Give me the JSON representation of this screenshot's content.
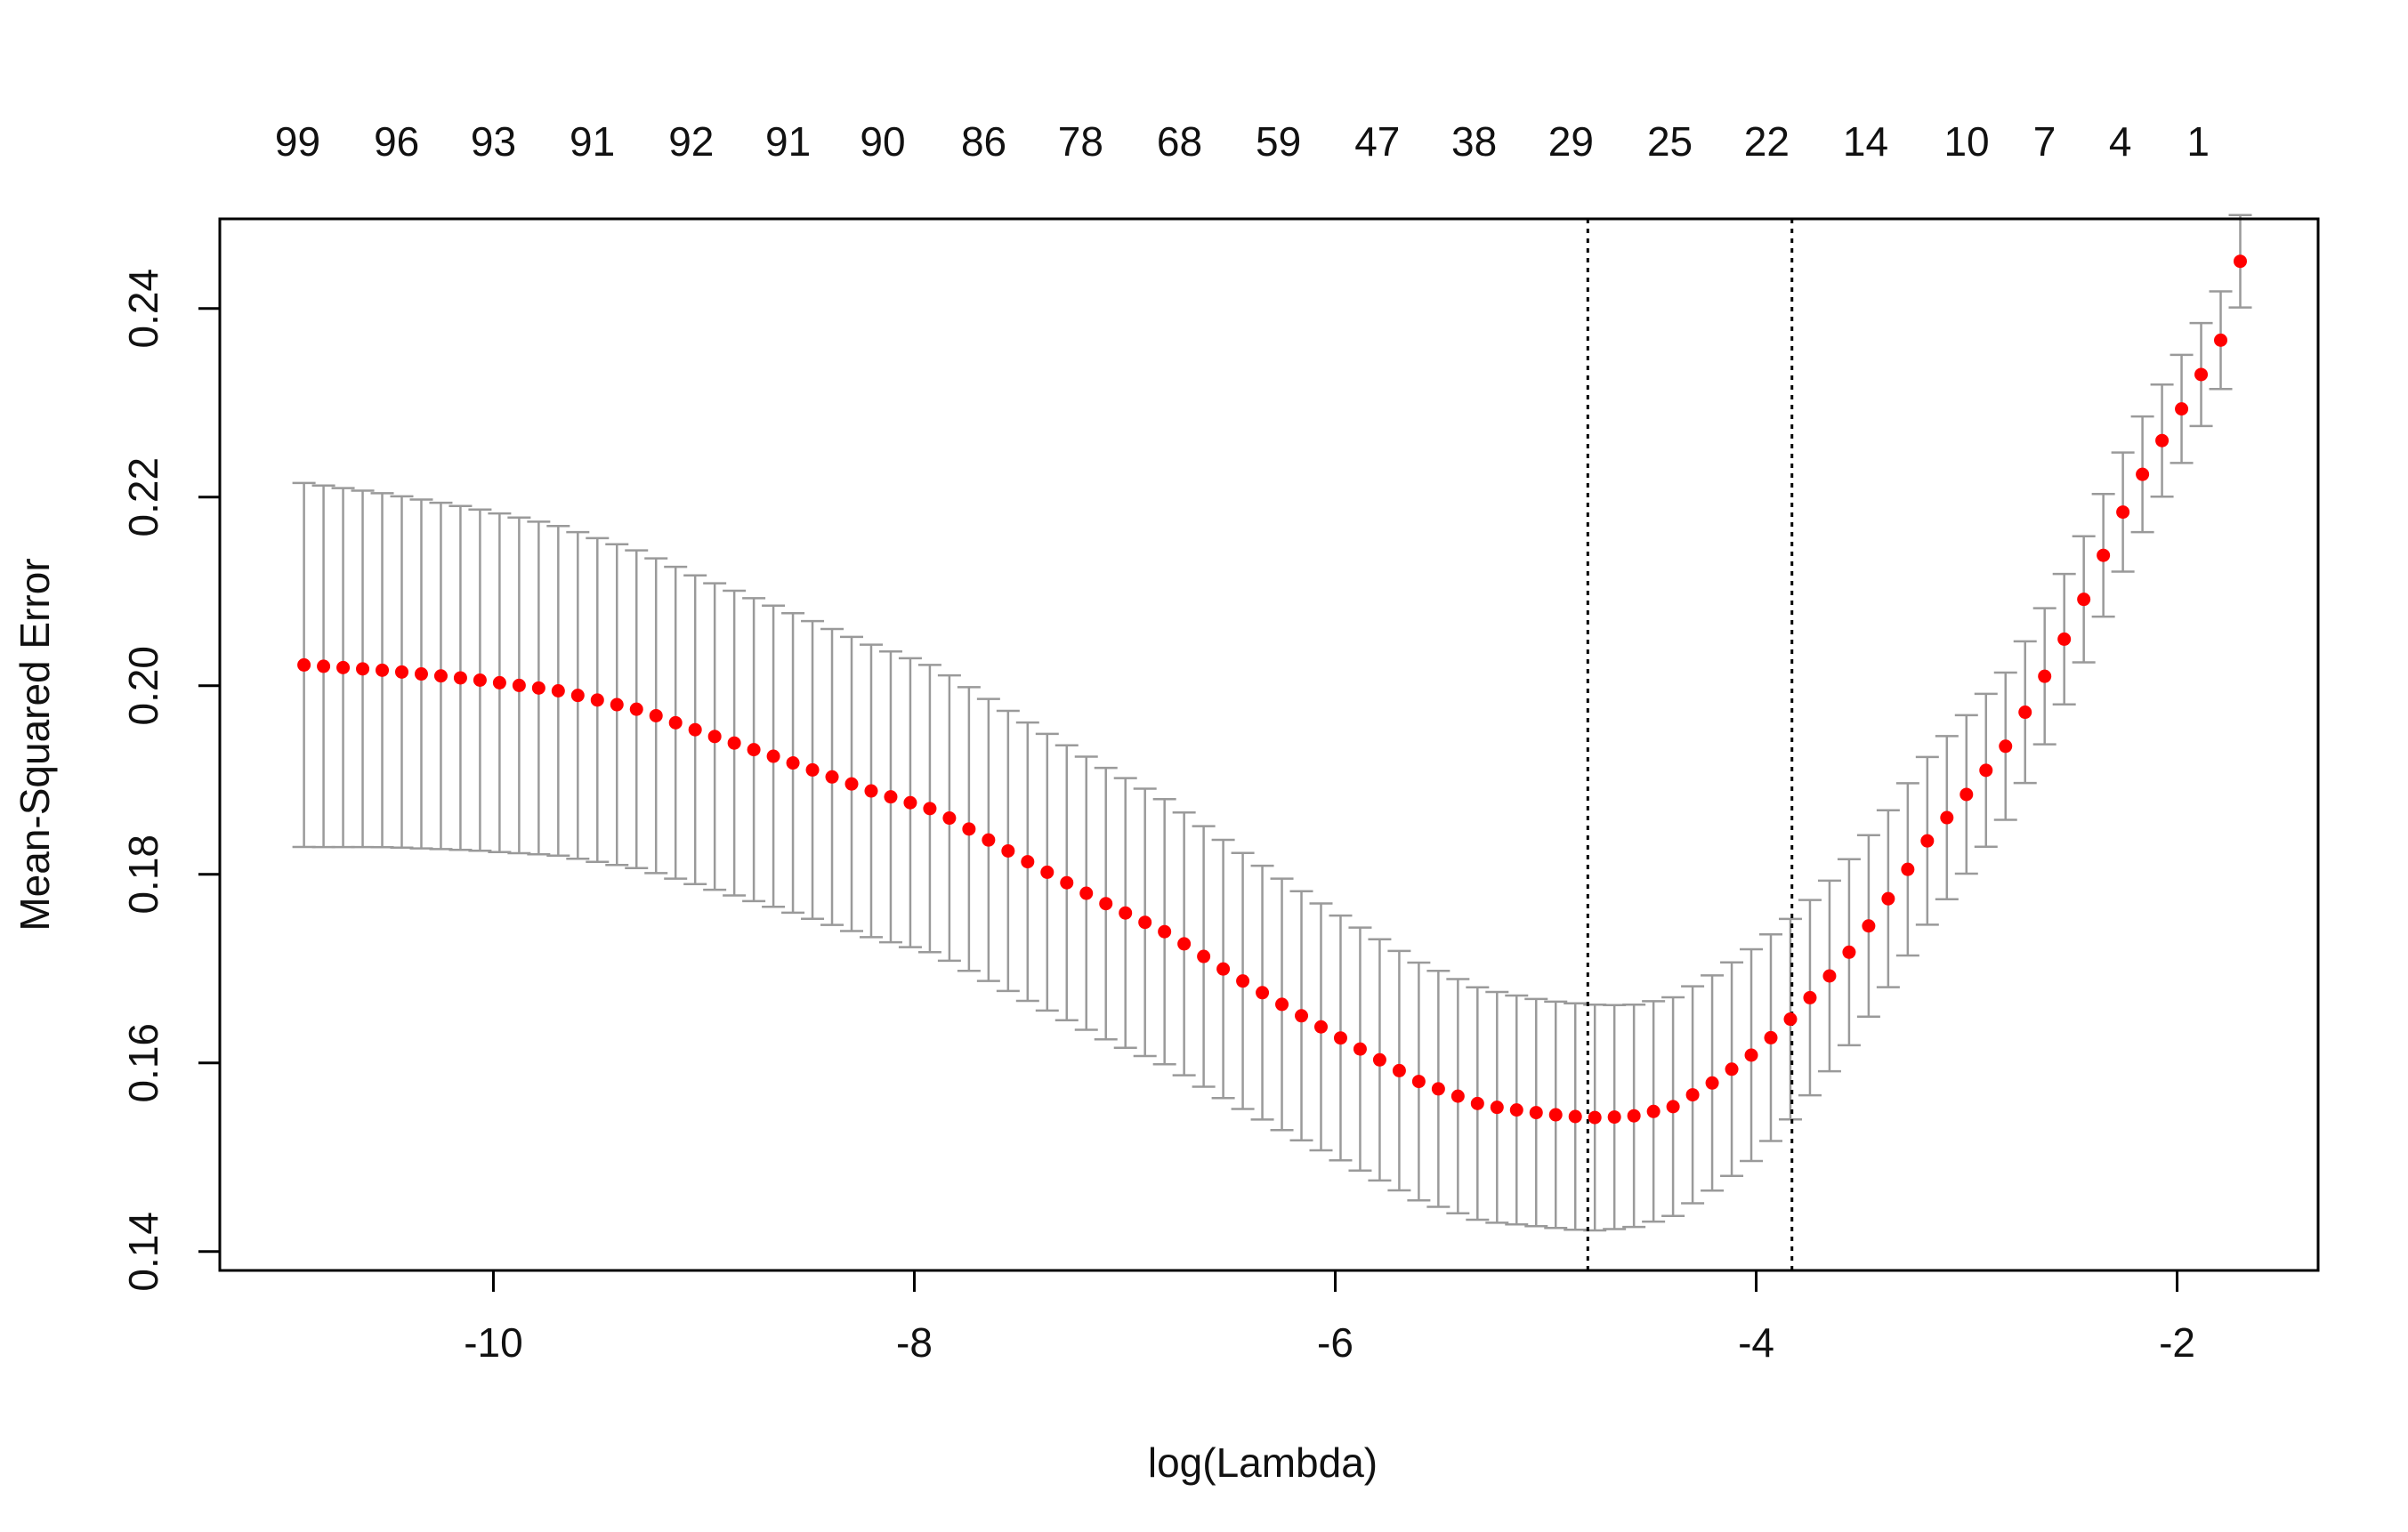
{
  "chart_data": {
    "type": "scatter",
    "title": "",
    "xlabel": "log(Lambda)",
    "ylabel": "Mean-Squared Error",
    "xlim": [
      -11.3,
      -1.33
    ],
    "ylim": [
      0.138,
      0.2495
    ],
    "x_ticks": [
      -10,
      -8,
      -6,
      -4,
      -2
    ],
    "x_tick_labels": [
      "-10",
      "-8",
      "-6",
      "-4",
      "-2"
    ],
    "y_ticks": [
      0.14,
      0.16,
      0.18,
      0.2,
      0.22,
      0.24
    ],
    "y_tick_labels": [
      "0.14",
      "0.16",
      "0.18",
      "0.20",
      "0.22",
      "0.24"
    ],
    "top_axis_x": [
      -10.93,
      -10.46,
      -10.0,
      -9.53,
      -9.06,
      -8.6,
      -8.15,
      -7.67,
      -7.21,
      -6.74,
      -6.27,
      -5.8,
      -5.34,
      -4.88,
      -4.41,
      -3.95,
      -3.48,
      -3.0,
      -2.63,
      -2.27,
      -1.9
    ],
    "top_axis_labels": [
      "99",
      "96",
      "93",
      "91",
      "92",
      "91",
      "90",
      "86",
      "78",
      "68",
      "59",
      "47",
      "38",
      "29",
      "25",
      "22",
      "14",
      "10",
      "7",
      "4",
      "1"
    ],
    "vlines": [
      -4.8,
      -3.83
    ],
    "x_start": -10.9,
    "x_end": -1.7,
    "mse_knots": [
      [
        -10.9,
        0.2022
      ],
      [
        -10.5,
        0.2016
      ],
      [
        -10.1,
        0.2007
      ],
      [
        -9.7,
        0.1995
      ],
      [
        -9.3,
        0.1974
      ],
      [
        -9.0,
        0.195
      ],
      [
        -8.6,
        0.192
      ],
      [
        -8.2,
        0.1888
      ],
      [
        -7.9,
        0.1868
      ],
      [
        -7.5,
        0.1818
      ],
      [
        -7.1,
        0.177
      ],
      [
        -6.8,
        0.1738
      ],
      [
        -6.5,
        0.1695
      ],
      [
        -6.2,
        0.1655
      ],
      [
        -5.9,
        0.1617
      ],
      [
        -5.6,
        0.158
      ],
      [
        -5.3,
        0.1555
      ],
      [
        -5.0,
        0.1546
      ],
      [
        -4.8,
        0.1542
      ],
      [
        -4.6,
        0.1543
      ],
      [
        -4.4,
        0.1553
      ],
      [
        -4.2,
        0.158
      ],
      [
        -4.0,
        0.1612
      ],
      [
        -3.83,
        0.1648
      ],
      [
        -3.6,
        0.1705
      ],
      [
        -3.4,
        0.1765
      ],
      [
        -3.2,
        0.1832
      ],
      [
        -3.0,
        0.1885
      ],
      [
        -2.8,
        0.194
      ],
      [
        -2.6,
        0.2022
      ],
      [
        -2.5,
        0.2065
      ],
      [
        -2.4,
        0.2112
      ],
      [
        -2.3,
        0.2165
      ],
      [
        -2.2,
        0.221
      ],
      [
        -2.1,
        0.225
      ],
      [
        -2.0,
        0.2285
      ],
      [
        -1.9,
        0.2325
      ],
      [
        -1.8,
        0.236
      ],
      [
        -1.7,
        0.245
      ]
    ],
    "halfwidth_knots": [
      [
        -10.9,
        0.0193
      ],
      [
        -10.0,
        0.018
      ],
      [
        -9.0,
        0.0163
      ],
      [
        -8.0,
        0.0153
      ],
      [
        -7.0,
        0.0143
      ],
      [
        -6.0,
        0.013
      ],
      [
        -5.0,
        0.012
      ],
      [
        -4.8,
        0.012
      ],
      [
        -4.0,
        0.0112
      ],
      [
        -3.8,
        0.0105
      ],
      [
        -3.0,
        0.0084
      ],
      [
        -2.5,
        0.0068
      ],
      [
        -2.0,
        0.0058
      ],
      [
        -1.7,
        0.0049
      ]
    ],
    "n_points": 100,
    "point_color": "#ff0000",
    "errorbar_color": "#9a9a9a",
    "vline_color": "#000000"
  }
}
